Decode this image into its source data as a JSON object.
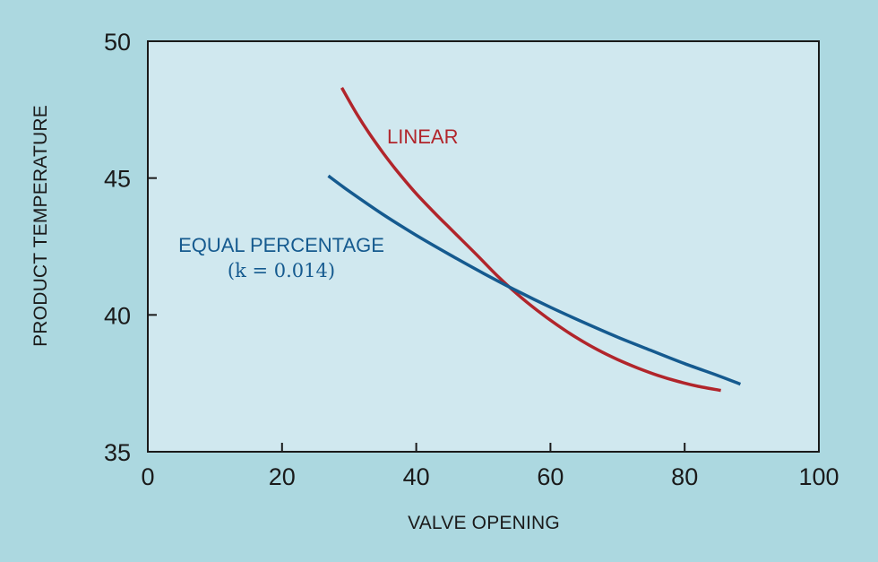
{
  "chart_data": {
    "type": "line",
    "title": "",
    "xlabel": "VALVE OPENING",
    "ylabel": "PRODUCT TEMPERATURE",
    "xlim": [
      0,
      100
    ],
    "ylim": [
      35,
      50
    ],
    "x_ticks": [
      0,
      20,
      40,
      60,
      80,
      100
    ],
    "y_ticks": [
      35,
      40,
      45,
      50
    ],
    "grid": false,
    "colors": {
      "background": "#acd8e0",
      "plot_area": "#d0e8ef",
      "axis": "#1a1a1a",
      "linear": "#b1252b",
      "equal_percentage": "#155a8f"
    },
    "series": [
      {
        "name": "LINEAR",
        "x": [
          28.9,
          31,
          33,
          35,
          37,
          40,
          43,
          46,
          49,
          52,
          55,
          58,
          61,
          64,
          67,
          70,
          73,
          76,
          79,
          82,
          85.4
        ],
        "y": [
          48.3,
          47.4,
          46.63,
          45.94,
          45.3,
          44.43,
          43.66,
          42.93,
          42.2,
          41.45,
          40.77,
          40.17,
          39.63,
          39.15,
          38.73,
          38.37,
          38.06,
          37.79,
          37.57,
          37.39,
          37.24
        ]
      },
      {
        "name": "EQUAL PERCENTAGE",
        "annotation": "(k = 0.014)",
        "x": [
          26.9,
          30,
          35,
          40,
          45,
          50,
          55,
          60,
          65,
          70,
          75,
          80,
          85,
          88.3
        ],
        "y": [
          45.08,
          44.52,
          43.68,
          42.91,
          42.2,
          41.52,
          40.88,
          40.28,
          39.72,
          39.19,
          38.7,
          38.22,
          37.78,
          37.47
        ]
      }
    ]
  }
}
